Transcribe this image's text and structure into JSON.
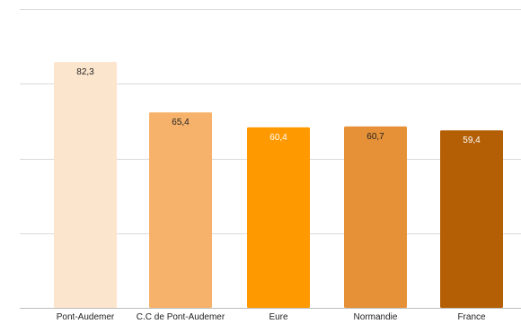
{
  "chart_data": {
    "type": "bar",
    "categories": [
      "Pont-Audemer",
      "C.C de Pont-Audemer",
      "Eure",
      "Normandie",
      "France"
    ],
    "values": [
      82.3,
      65.4,
      60.4,
      60.7,
      59.4
    ],
    "value_labels": [
      "82,3",
      "65,4",
      "60,4",
      "60,7",
      "59,4"
    ],
    "bar_colors": [
      "#fce5cd",
      "#f6b26b",
      "#ff9900",
      "#e69138",
      "#b45f06"
    ],
    "label_colors": [
      "#222222",
      "#222222",
      "#ffffff",
      "#222222",
      "#ffffff"
    ],
    "title": "",
    "xlabel": "",
    "ylabel": "",
    "ylim": [
      0,
      100
    ],
    "gridlines": [
      0,
      25,
      50,
      75,
      100
    ],
    "grid": true,
    "legend": "none"
  }
}
